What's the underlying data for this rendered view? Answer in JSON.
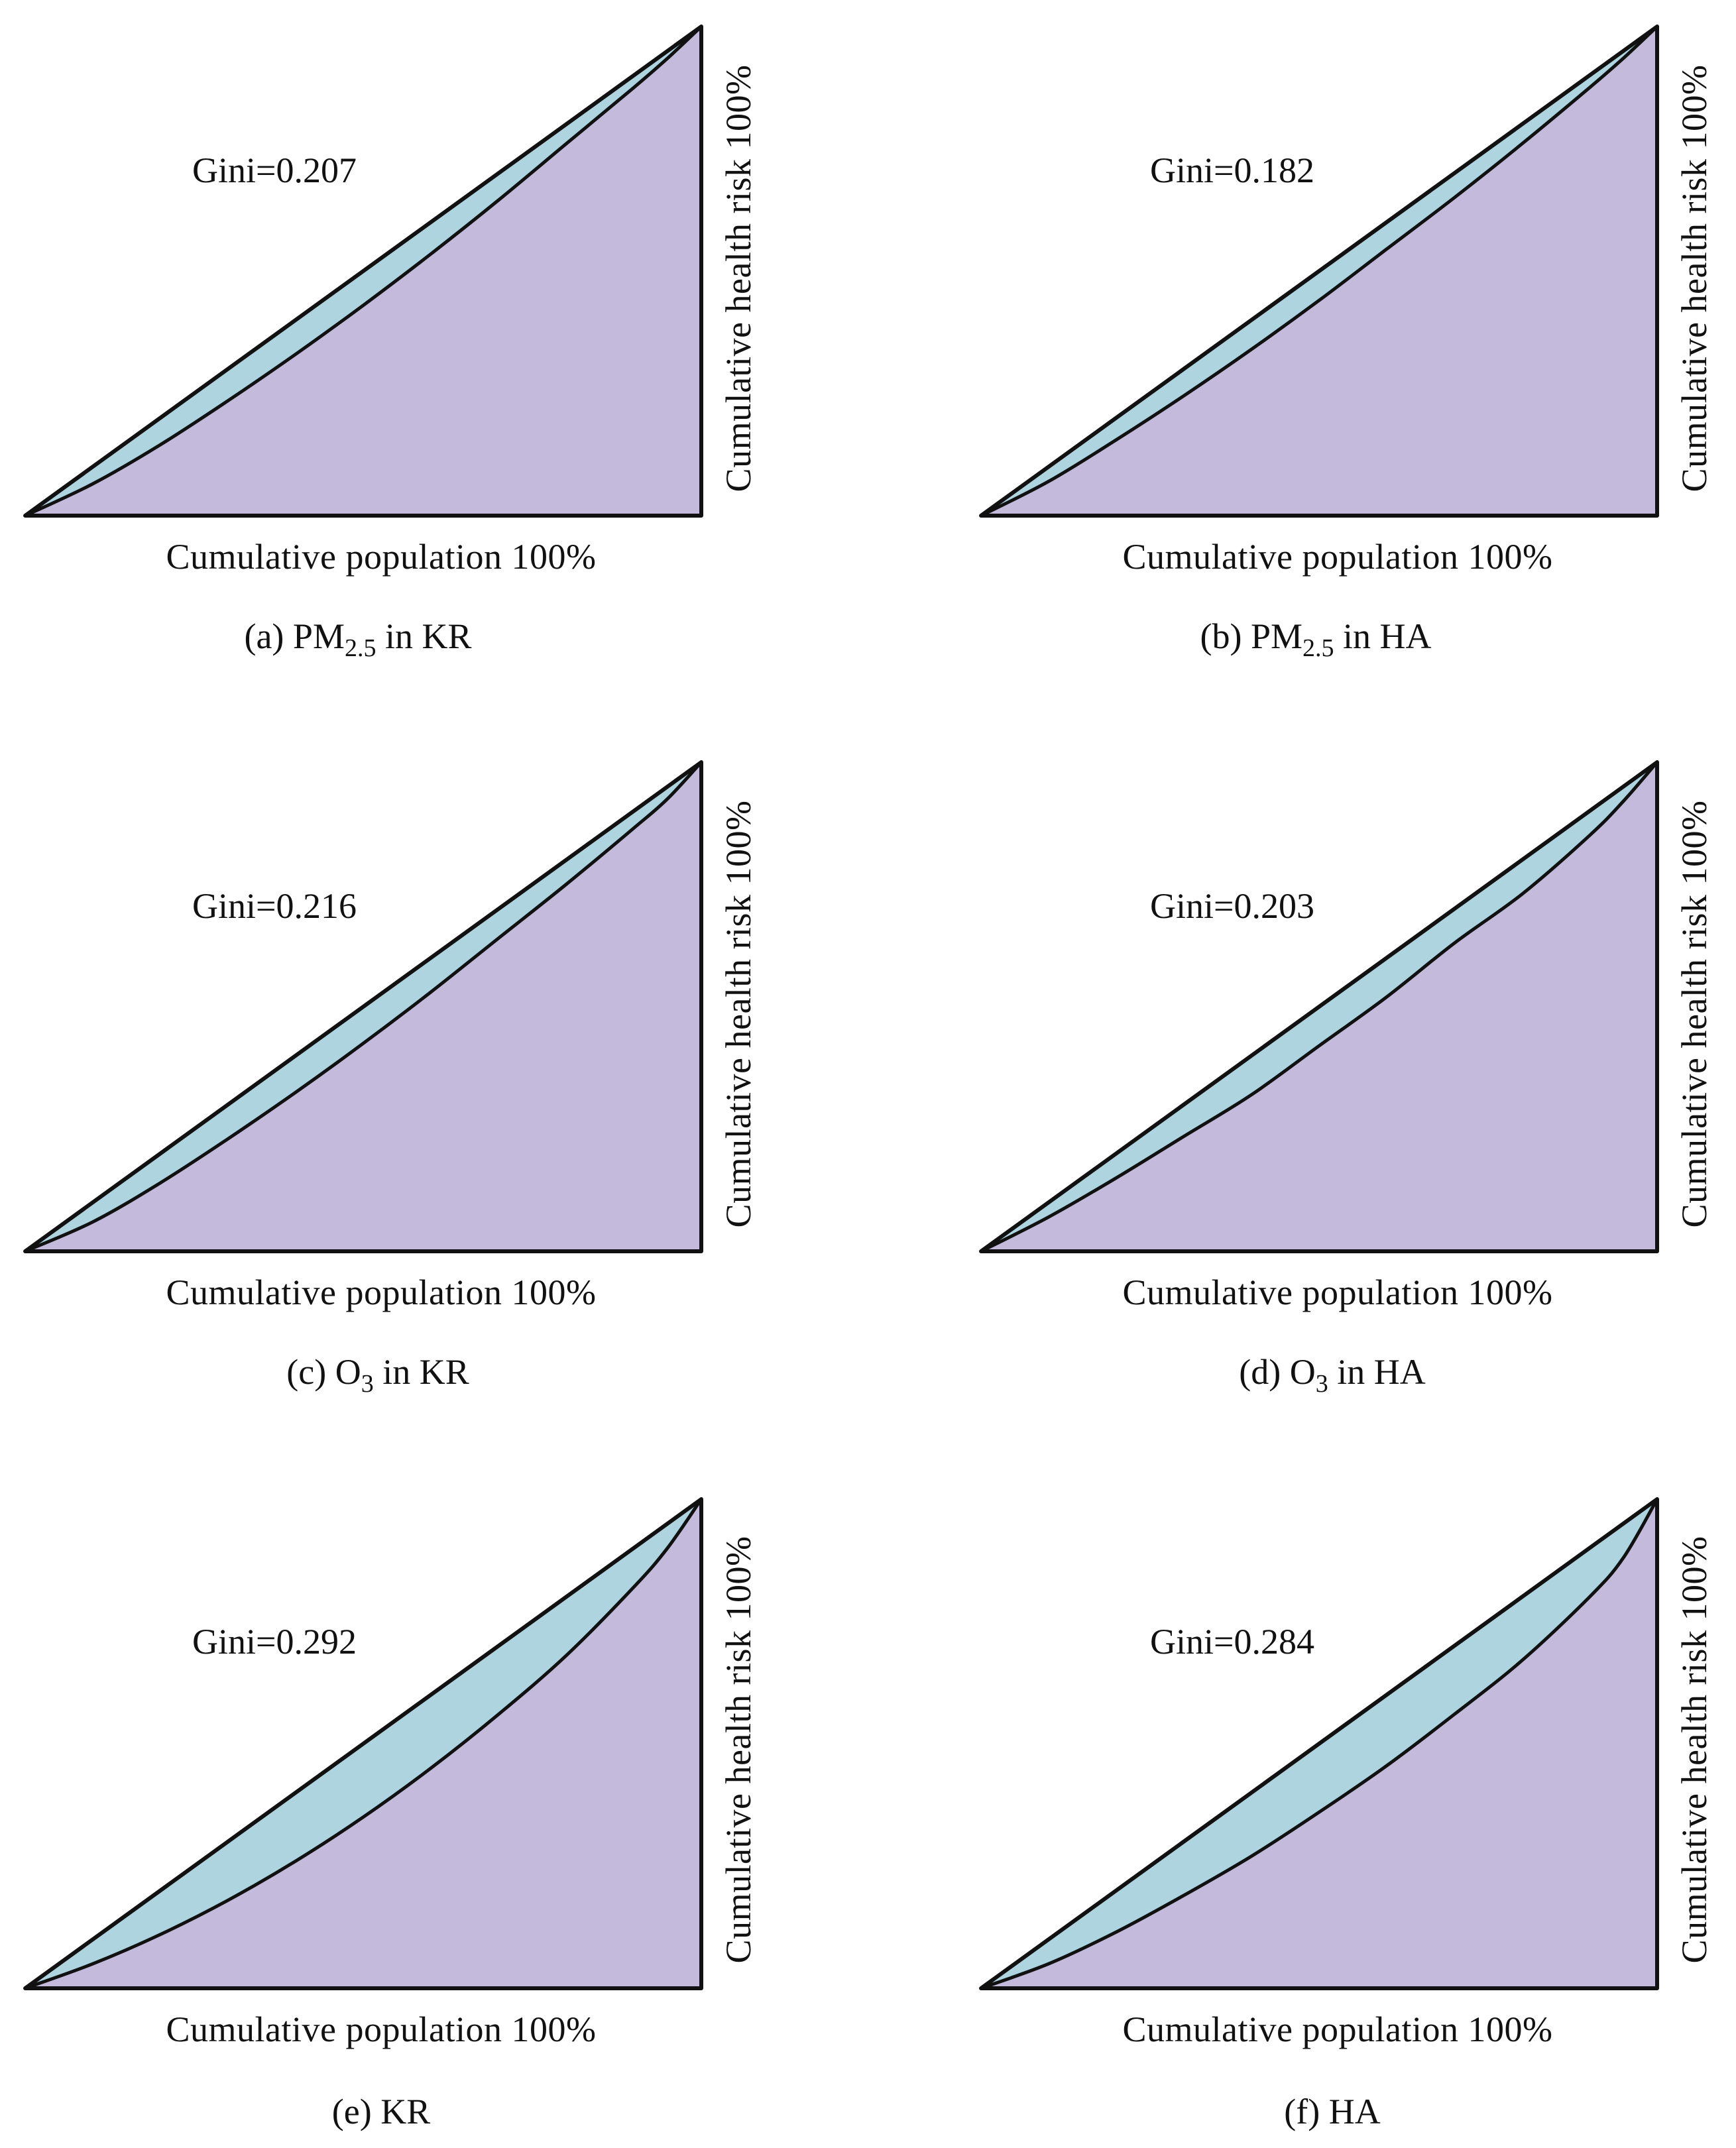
{
  "colors": {
    "equality_gap_fill": "#aed4e0",
    "lorenz_fill": "#c3badc",
    "line": "#111111"
  },
  "chart_data": [
    {
      "type": "area",
      "id": "a",
      "gini_label": "Gini=0.207",
      "xlabel": "Cumulative  population 100%",
      "ylabel": "Cumulative  health risk 100%",
      "caption": {
        "prefix": "(a) PM",
        "sub": "2.5",
        "suffix": " in KR"
      },
      "x": [
        0,
        0.1,
        0.2,
        0.3,
        0.4,
        0.5,
        0.6,
        0.7,
        0.8,
        0.9,
        0.95,
        1.0
      ],
      "lorenz": [
        0,
        0.065,
        0.145,
        0.235,
        0.33,
        0.43,
        0.535,
        0.645,
        0.76,
        0.875,
        0.935,
        1.0
      ],
      "xlim": [
        0,
        1
      ],
      "ylim": [
        0,
        1
      ]
    },
    {
      "type": "area",
      "id": "b",
      "gini_label": "Gini=0.182",
      "xlabel": "Cumulative  population 100%",
      "ylabel": "Cumulative  health risk 100%",
      "caption": {
        "prefix": "(b) PM",
        "sub": "2.5",
        "suffix": " in HA"
      },
      "x": [
        0,
        0.1,
        0.2,
        0.3,
        0.4,
        0.5,
        0.6,
        0.7,
        0.8,
        0.9,
        0.95,
        1.0
      ],
      "lorenz": [
        0,
        0.07,
        0.155,
        0.245,
        0.34,
        0.44,
        0.545,
        0.65,
        0.76,
        0.875,
        0.935,
        1.0
      ],
      "xlim": [
        0,
        1
      ],
      "ylim": [
        0,
        1
      ]
    },
    {
      "type": "area",
      "id": "c",
      "gini_label": "Gini=0.216",
      "xlabel": "Cumulative  population 100%",
      "ylabel": "Cumulative  health risk 100%",
      "caption": {
        "prefix": "(c) O",
        "sub": "3",
        "suffix": " in KR"
      },
      "x": [
        0,
        0.1,
        0.2,
        0.3,
        0.4,
        0.5,
        0.6,
        0.7,
        0.8,
        0.9,
        0.95,
        1.0
      ],
      "lorenz": [
        0,
        0.06,
        0.14,
        0.23,
        0.325,
        0.425,
        0.53,
        0.64,
        0.75,
        0.865,
        0.925,
        1.0
      ],
      "xlim": [
        0,
        1
      ],
      "ylim": [
        0,
        1
      ]
    },
    {
      "type": "area",
      "id": "d",
      "gini_label": "Gini=0.203",
      "xlabel": "Cumulative  population 100%",
      "ylabel": "Cumulative  health risk 100%",
      "caption": {
        "prefix": "(d) O",
        "sub": "3",
        "suffix": " in HA"
      },
      "x": [
        0,
        0.1,
        0.2,
        0.3,
        0.4,
        0.5,
        0.6,
        0.7,
        0.8,
        0.9,
        0.95,
        1.0
      ],
      "lorenz": [
        0,
        0.07,
        0.15,
        0.235,
        0.32,
        0.42,
        0.52,
        0.63,
        0.73,
        0.85,
        0.92,
        1.0
      ],
      "xlim": [
        0,
        1
      ],
      "ylim": [
        0,
        1
      ]
    },
    {
      "type": "area",
      "id": "e",
      "gini_label": "Gini=0.292",
      "xlabel": "Cumulative  population 100%",
      "ylabel": "Cumulative  health risk 100%",
      "caption": {
        "prefix": "(e) KR",
        "sub": "",
        "suffix": ""
      },
      "x": [
        0,
        0.1,
        0.2,
        0.3,
        0.4,
        0.5,
        0.6,
        0.7,
        0.8,
        0.9,
        0.95,
        1.0
      ],
      "lorenz": [
        0,
        0.05,
        0.11,
        0.18,
        0.26,
        0.35,
        0.45,
        0.56,
        0.68,
        0.82,
        0.9,
        1.0
      ],
      "xlim": [
        0,
        1
      ],
      "ylim": [
        0,
        1
      ]
    },
    {
      "type": "area",
      "id": "f",
      "gini_label": "Gini=0.284",
      "xlabel": "Cumulative  population 100%",
      "ylabel": "Cumulative  health risk 100%",
      "caption": {
        "prefix": "(f) HA",
        "sub": "",
        "suffix": ""
      },
      "x": [
        0,
        0.1,
        0.2,
        0.3,
        0.4,
        0.5,
        0.6,
        0.7,
        0.8,
        0.9,
        0.95,
        1.0
      ],
      "lorenz": [
        0,
        0.05,
        0.115,
        0.19,
        0.27,
        0.36,
        0.455,
        0.56,
        0.67,
        0.8,
        0.88,
        1.0
      ],
      "xlim": [
        0,
        1
      ],
      "ylim": [
        0,
        1
      ]
    }
  ]
}
